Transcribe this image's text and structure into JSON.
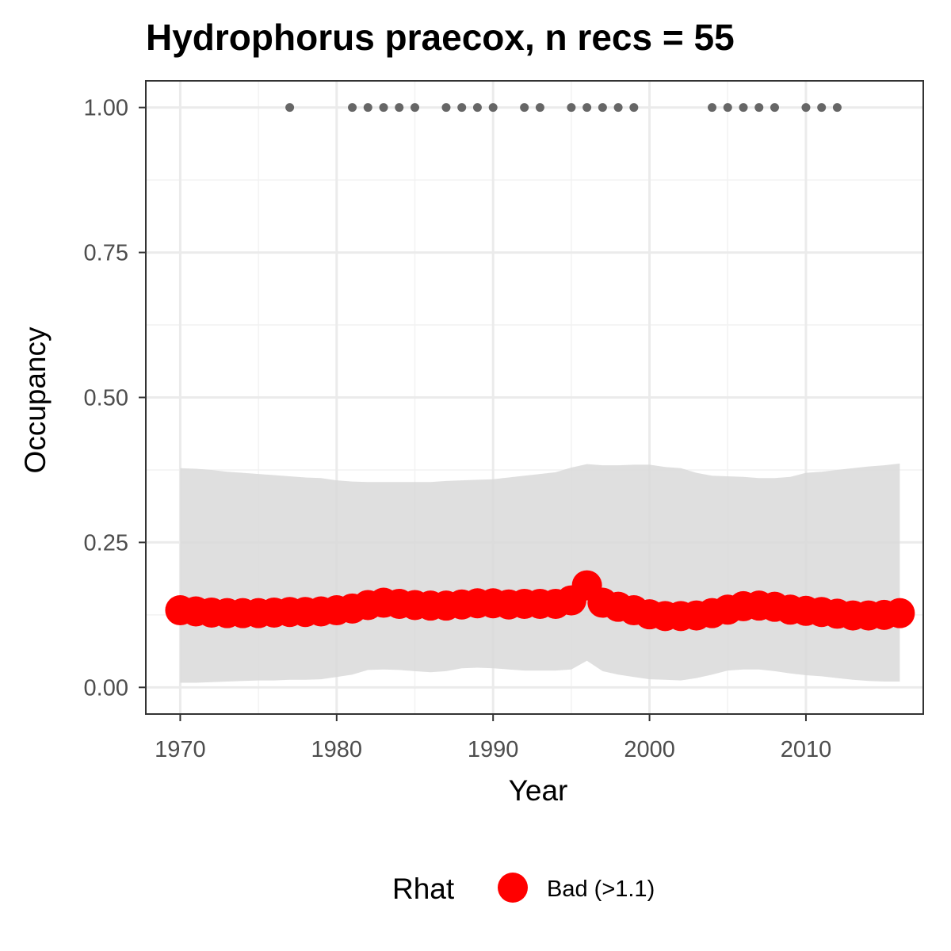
{
  "chart_data": {
    "type": "line",
    "title": "Hydrophorus praecox, n recs = 55",
    "xlabel": "Year",
    "ylabel": "Occupancy",
    "xlim": [
      1967.8,
      2017.5
    ],
    "ylim": [
      -0.046,
      1.046
    ],
    "x_ticks": [
      1970,
      1980,
      1990,
      2000,
      2010
    ],
    "x_tick_labels": [
      "1970",
      "1980",
      "1990",
      "2000",
      "2010"
    ],
    "y_ticks": [
      0,
      0.25,
      0.5,
      0.75,
      1.0
    ],
    "y_tick_labels": [
      "0.00",
      "0.25",
      "0.50",
      "0.75",
      "1.00"
    ],
    "grid": true,
    "series": [
      {
        "name": "Bad (>1.1)",
        "color": "#ff0000",
        "x": [
          1970,
          1971,
          1972,
          1973,
          1974,
          1975,
          1976,
          1977,
          1978,
          1979,
          1980,
          1981,
          1982,
          1983,
          1984,
          1985,
          1986,
          1987,
          1988,
          1989,
          1990,
          1991,
          1992,
          1993,
          1994,
          1995,
          1996,
          1997,
          1998,
          1999,
          2000,
          2001,
          2002,
          2003,
          2004,
          2005,
          2006,
          2007,
          2008,
          2009,
          2010,
          2011,
          2012,
          2013,
          2014,
          2015,
          2016
        ],
        "y": [
          0.133,
          0.131,
          0.129,
          0.128,
          0.128,
          0.128,
          0.129,
          0.13,
          0.13,
          0.131,
          0.133,
          0.136,
          0.142,
          0.146,
          0.144,
          0.142,
          0.141,
          0.141,
          0.143,
          0.145,
          0.145,
          0.143,
          0.144,
          0.144,
          0.144,
          0.15,
          0.176,
          0.146,
          0.139,
          0.133,
          0.126,
          0.123,
          0.123,
          0.124,
          0.128,
          0.134,
          0.14,
          0.141,
          0.139,
          0.134,
          0.132,
          0.13,
          0.127,
          0.124,
          0.124,
          0.125,
          0.128
        ],
        "lower": [
          0.008,
          0.008,
          0.009,
          0.01,
          0.011,
          0.012,
          0.012,
          0.013,
          0.013,
          0.014,
          0.018,
          0.022,
          0.03,
          0.031,
          0.03,
          0.028,
          0.026,
          0.028,
          0.033,
          0.034,
          0.033,
          0.031,
          0.029,
          0.029,
          0.029,
          0.031,
          0.046,
          0.028,
          0.022,
          0.018,
          0.014,
          0.013,
          0.012,
          0.016,
          0.022,
          0.029,
          0.031,
          0.031,
          0.028,
          0.024,
          0.021,
          0.019,
          0.016,
          0.013,
          0.011,
          0.01,
          0.01
        ],
        "upper": [
          0.378,
          0.377,
          0.375,
          0.372,
          0.37,
          0.368,
          0.366,
          0.364,
          0.362,
          0.361,
          0.357,
          0.355,
          0.354,
          0.354,
          0.354,
          0.354,
          0.354,
          0.356,
          0.357,
          0.358,
          0.359,
          0.362,
          0.365,
          0.368,
          0.371,
          0.379,
          0.385,
          0.383,
          0.383,
          0.384,
          0.384,
          0.38,
          0.378,
          0.37,
          0.365,
          0.364,
          0.363,
          0.361,
          0.361,
          0.363,
          0.37,
          0.372,
          0.375,
          0.378,
          0.381,
          0.383,
          0.386
        ]
      }
    ],
    "records": {
      "y": 1.0,
      "color": "#666666",
      "x": [
        1977,
        1981,
        1982,
        1983,
        1984,
        1985,
        1987,
        1988,
        1989,
        1990,
        1992,
        1993,
        1995,
        1996,
        1997,
        1998,
        1999,
        2004,
        2005,
        2006,
        2007,
        2008,
        2010,
        2011,
        2012
      ]
    },
    "ribbon_color": "#d9d9d9",
    "legend": {
      "title": "Rhat",
      "position": "bottom",
      "items": [
        {
          "label": "Bad (>1.1)",
          "color": "#ff0000"
        }
      ]
    }
  }
}
